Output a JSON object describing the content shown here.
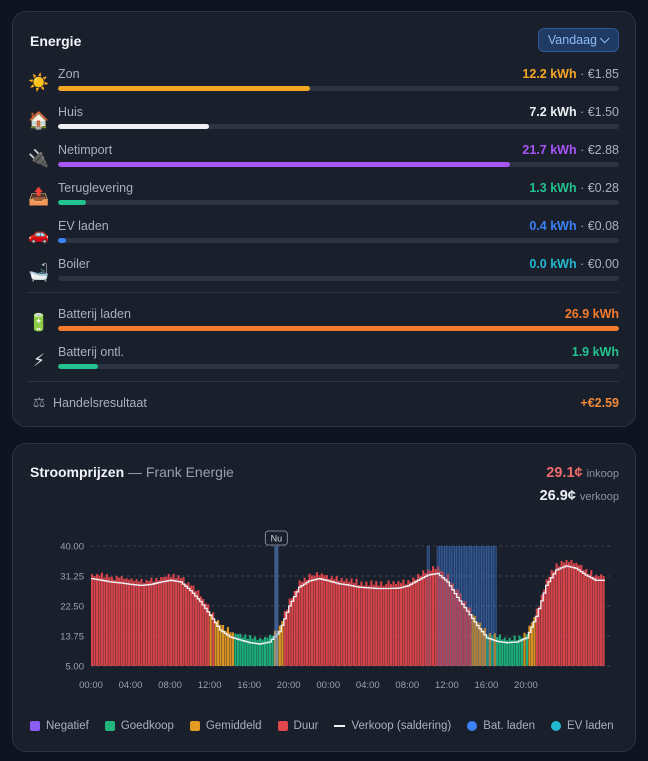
{
  "energy": {
    "title": "Energie",
    "period_label": "Vandaag",
    "rows": [
      {
        "icon": "☀️",
        "icon_name": "sun-icon",
        "label": "Zon",
        "kwh": "12.2 kWh",
        "cost": " · €1.85",
        "color": "#f5a623",
        "progress": 0.45
      },
      {
        "icon": "🏠",
        "icon_name": "house-icon",
        "label": "Huis",
        "kwh": "7.2 kWh",
        "cost": " · €1.50",
        "color": "#eef0f4",
        "progress": 0.27
      },
      {
        "icon": "🔌",
        "icon_name": "plug-icon",
        "label": "Netimport",
        "kwh": "21.7 kWh",
        "cost": " · €2.88",
        "color": "#a855f7",
        "progress": 0.805
      },
      {
        "icon": "📤",
        "icon_name": "outbox-icon",
        "label": "Teruglevering",
        "kwh": "1.3 kWh",
        "cost": " · €0.28",
        "color": "#22c38e",
        "progress": 0.05
      },
      {
        "icon": "🚗",
        "icon_name": "car-icon",
        "label": "EV laden",
        "kwh": "0.4 kWh",
        "cost": " · €0.08",
        "color": "#3b82f6",
        "progress": 0.015
      },
      {
        "icon": "🛁",
        "icon_name": "bathtub-icon",
        "label": "Boiler",
        "kwh": "0.0 kWh",
        "cost": " · €0.00",
        "color": "#22b8cf",
        "progress": 0.0
      }
    ],
    "battery_rows": [
      {
        "icon": "🔋",
        "icon_name": "battery-icon",
        "label": "Batterij laden",
        "kwh": "26.9 kWh",
        "cost": "",
        "color": "#f47c2c",
        "progress": 1.0
      },
      {
        "icon": "⚡",
        "icon_name": "lightning-icon",
        "label": "Batterij ontl.",
        "kwh": "1.9 kWh",
        "cost": "",
        "color": "#22c38e",
        "progress": 0.072
      }
    ],
    "trade": {
      "icon": "⚖",
      "label": "Handelsresultaat",
      "value": "+€2.59"
    }
  },
  "prices": {
    "title": "Stroomprijzen",
    "subtitle": " — Frank Energie",
    "buy_value": "29.1¢",
    "buy_unit": "inkoop",
    "sell_value": "26.9¢",
    "sell_unit": "verkoop",
    "buy_color": "#f06b6b",
    "sell_color": "#eef0f4"
  },
  "chart_data": {
    "type": "bar",
    "ylim": [
      5,
      40
    ],
    "yticks": [
      "40.00",
      "31.25",
      "22.50",
      "13.75",
      "5.00"
    ],
    "xticks": [
      "00:00",
      "04:00",
      "08:00",
      "12:00",
      "16:00",
      "20:00",
      "00:00",
      "04:00",
      "08:00",
      "12:00",
      "16:00",
      "20:00"
    ],
    "now_label": "Nu",
    "now_hour": 18.75,
    "bat_laden_window_hours": [
      [
        34.0,
        34.25
      ],
      [
        35.0,
        41.0
      ]
    ],
    "series": [
      {
        "name": "Inkoop",
        "values": [
          31.8,
          31.4,
          31.0,
          30.7,
          30.2,
          30.0,
          30.2,
          30.8,
          31.5,
          31.0,
          28.5,
          25.5,
          21.0,
          17.0,
          15.0,
          14.0,
          13.2,
          12.8,
          13.5,
          16.5,
          24.0,
          29.5,
          31.3,
          32.0,
          31.2,
          30.5,
          30.0,
          29.5,
          29.2,
          29.0,
          29.0,
          29.1,
          29.8,
          31.5,
          33.0,
          33.5,
          31.0,
          26.5,
          22.5,
          18.0,
          14.5,
          13.5,
          13.0,
          13.2,
          14.5,
          21.0,
          30.0,
          34.5,
          35.8,
          35.0,
          33.0,
          31.5
        ]
      },
      {
        "name": "Verkoop (saldering)",
        "values": [
          30.5,
          30.0,
          29.5,
          29.2,
          28.8,
          28.5,
          28.8,
          29.5,
          30.0,
          29.5,
          27.0,
          23.8,
          19.8,
          15.5,
          13.5,
          12.6,
          11.8,
          11.4,
          12.0,
          15.0,
          22.5,
          28.0,
          29.8,
          30.5,
          29.8,
          29.0,
          28.6,
          28.0,
          27.8,
          27.6,
          27.6,
          27.7,
          28.4,
          30.0,
          31.5,
          32.0,
          29.5,
          25.0,
          21.0,
          16.8,
          13.2,
          12.2,
          11.8,
          12.0,
          13.2,
          19.5,
          28.5,
          33.0,
          34.2,
          33.5,
          31.5,
          30.0
        ]
      }
    ],
    "legend": [
      {
        "label": "Negatief",
        "color": "#8b5cf6",
        "shape": "square"
      },
      {
        "label": "Goedkoop",
        "color": "#1fb57d",
        "shape": "square"
      },
      {
        "label": "Gemiddeld",
        "color": "#e39a23",
        "shape": "square"
      },
      {
        "label": "Duur",
        "color": "#e0474c",
        "shape": "square"
      },
      {
        "label": "Verkoop (saldering)",
        "color": "#eef0f4",
        "shape": "line"
      },
      {
        "label": "Bat. laden",
        "color": "#3b82f6",
        "shape": "dot"
      },
      {
        "label": "EV laden",
        "color": "#22b8cf",
        "shape": "dot"
      }
    ]
  }
}
